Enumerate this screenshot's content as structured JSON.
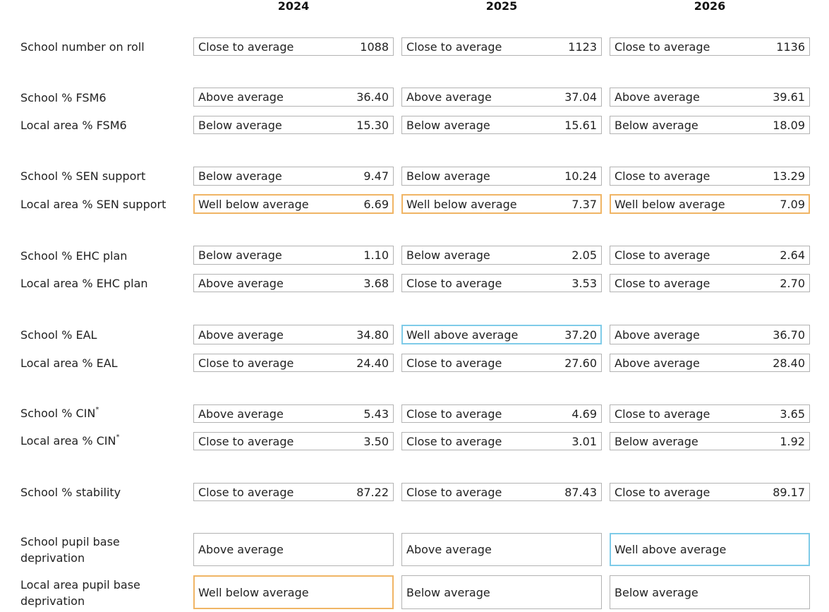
{
  "years": [
    "2024",
    "2025",
    "2026"
  ],
  "colors": {
    "well_below_border": "#f0b565",
    "well_above_border": "#7fcbe8",
    "default_border": "#b3b3b3"
  },
  "rows": [
    {
      "label": "School number on roll",
      "cells": [
        {
          "rating": "Close to average",
          "value": "1088"
        },
        {
          "rating": "Close to average",
          "value": "1123"
        },
        {
          "rating": "Close to average",
          "value": "1136"
        }
      ]
    },
    {
      "label": "School % FSM6",
      "cells": [
        {
          "rating": "Above average",
          "value": "36.40"
        },
        {
          "rating": "Above average",
          "value": "37.04"
        },
        {
          "rating": "Above average",
          "value": "39.61"
        }
      ]
    },
    {
      "label": "Local area % FSM6",
      "cells": [
        {
          "rating": "Below average",
          "value": "15.30"
        },
        {
          "rating": "Below average",
          "value": "15.61"
        },
        {
          "rating": "Below average",
          "value": "18.09"
        }
      ]
    },
    {
      "label": "School % SEN support",
      "cells": [
        {
          "rating": "Below average",
          "value": "9.47"
        },
        {
          "rating": "Below average",
          "value": "10.24"
        },
        {
          "rating": "Close to average",
          "value": "13.29"
        }
      ]
    },
    {
      "label": "Local area % SEN support",
      "cells": [
        {
          "rating": "Well below average",
          "value": "6.69"
        },
        {
          "rating": "Well below average",
          "value": "7.37"
        },
        {
          "rating": "Well below average",
          "value": "7.09"
        }
      ]
    },
    {
      "label": "School % EHC plan",
      "cells": [
        {
          "rating": "Below average",
          "value": "1.10"
        },
        {
          "rating": "Below average",
          "value": "2.05"
        },
        {
          "rating": "Close to average",
          "value": "2.64"
        }
      ]
    },
    {
      "label": "Local area % EHC plan",
      "cells": [
        {
          "rating": "Above average",
          "value": "3.68"
        },
        {
          "rating": "Close to average",
          "value": "3.53"
        },
        {
          "rating": "Close to average",
          "value": "2.70"
        }
      ]
    },
    {
      "label": "School % EAL",
      "cells": [
        {
          "rating": "Above average",
          "value": "34.80"
        },
        {
          "rating": "Well above average",
          "value": "37.20"
        },
        {
          "rating": "Above average",
          "value": "36.70"
        }
      ]
    },
    {
      "label": "Local area % EAL",
      "cells": [
        {
          "rating": "Close to average",
          "value": "24.40"
        },
        {
          "rating": "Close to average",
          "value": "27.60"
        },
        {
          "rating": "Above average",
          "value": "28.40"
        }
      ]
    },
    {
      "label": "School % CIN",
      "sup": "*",
      "cells": [
        {
          "rating": "Above average",
          "value": "5.43"
        },
        {
          "rating": "Close to average",
          "value": "4.69"
        },
        {
          "rating": "Close to average",
          "value": "3.65"
        }
      ]
    },
    {
      "label": "Local area % CIN",
      "sup": "*",
      "cells": [
        {
          "rating": "Close to average",
          "value": "3.50"
        },
        {
          "rating": "Close to average",
          "value": "3.01"
        },
        {
          "rating": "Below average",
          "value": "1.92"
        }
      ]
    },
    {
      "label": "School % stability",
      "cells": [
        {
          "rating": "Close to average",
          "value": "87.22"
        },
        {
          "rating": "Close to average",
          "value": "87.43"
        },
        {
          "rating": "Close to average",
          "value": "89.17"
        }
      ]
    },
    {
      "label": "School pupil base deprivation",
      "cells": [
        {
          "rating": "Above average",
          "value": ""
        },
        {
          "rating": "Above average",
          "value": ""
        },
        {
          "rating": "Well above average",
          "value": ""
        }
      ]
    },
    {
      "label": "Local area pupil base deprivation",
      "cells": [
        {
          "rating": "Well below average",
          "value": ""
        },
        {
          "rating": "Below average",
          "value": ""
        },
        {
          "rating": "Below average",
          "value": ""
        }
      ]
    }
  ]
}
